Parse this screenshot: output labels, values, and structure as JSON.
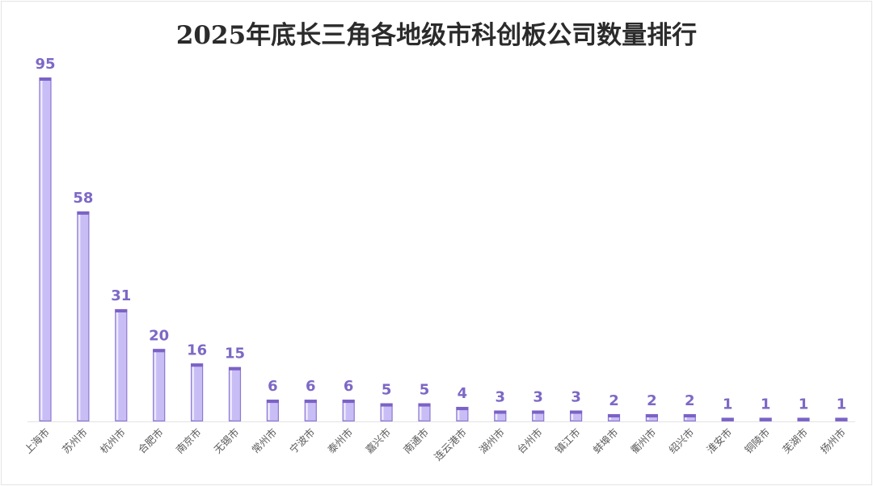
{
  "title": "2025年底长三角各地级市科创板公司数量排行",
  "colors": {
    "bar_fill": "#c8bdf5",
    "bar_dark": "#7b62c6",
    "bar_highlight": "#ece8fd",
    "label": "#7d68c6",
    "axis": "#e2e2e2",
    "category_text": "#5a5a5a"
  },
  "chart_data": {
    "type": "bar",
    "title": "2025年底长三角各地级市科创板公司数量排行",
    "xlabel": "",
    "ylabel": "",
    "ylim": [
      0,
      95
    ],
    "grid": false,
    "legend": "none",
    "categories": [
      "上海市",
      "苏州市",
      "杭州市",
      "合肥市",
      "南京市",
      "无锡市",
      "常州市",
      "宁波市",
      "泰州市",
      "嘉兴市",
      "南通市",
      "连云港市",
      "湖州市",
      "台州市",
      "镇江市",
      "蚌埠市",
      "衢州市",
      "绍兴市",
      "淮安市",
      "铜陵市",
      "芜湖市",
      "扬州市"
    ],
    "values": [
      95,
      58,
      31,
      20,
      16,
      15,
      6,
      6,
      6,
      5,
      5,
      4,
      3,
      3,
      3,
      2,
      2,
      2,
      1,
      1,
      1,
      1
    ]
  }
}
